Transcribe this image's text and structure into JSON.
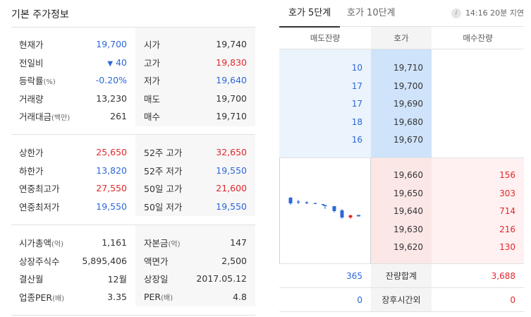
{
  "left": {
    "title": "기본 주가정보",
    "section1": {
      "col1": [
        {
          "label": "현재가",
          "value": "19,700",
          "color": "blue"
        },
        {
          "label": "전일비",
          "value": "40",
          "color": "blue",
          "arrow": "▼"
        },
        {
          "label": "등락률",
          "label_sub": "(%)",
          "value": "-0.20%",
          "color": "blue"
        },
        {
          "label": "거래량",
          "value": "13,230",
          "color": "dark"
        },
        {
          "label": "거래대금",
          "label_sub": "(백만)",
          "value": "261",
          "color": "dark"
        }
      ],
      "col2": [
        {
          "label": "시가",
          "value": "19,740",
          "color": "dark"
        },
        {
          "label": "고가",
          "value": "19,830",
          "color": "red"
        },
        {
          "label": "저가",
          "value": "19,640",
          "color": "blue"
        },
        {
          "label": "매도",
          "value": "19,700",
          "color": "dark"
        },
        {
          "label": "매수",
          "value": "19,710",
          "color": "dark"
        }
      ]
    },
    "section2": {
      "col1": [
        {
          "label": "상한가",
          "value": "25,650",
          "color": "red"
        },
        {
          "label": "하한가",
          "value": "13,820",
          "color": "blue"
        },
        {
          "label": "연중최고가",
          "value": "27,550",
          "color": "red"
        },
        {
          "label": "연중최저가",
          "value": "19,550",
          "color": "blue"
        }
      ],
      "col2": [
        {
          "label": "52주 고가",
          "value": "32,650",
          "color": "red"
        },
        {
          "label": "52주 저가",
          "value": "19,550",
          "color": "blue"
        },
        {
          "label": "50일 고가",
          "value": "21,600",
          "color": "red"
        },
        {
          "label": "50일 저가",
          "value": "19,550",
          "color": "blue"
        }
      ]
    },
    "section3": {
      "col1": [
        {
          "label": "시가총액",
          "label_sub": "(억)",
          "value": "1,161",
          "color": "dark"
        },
        {
          "label": "상장주식수",
          "value": "5,895,406",
          "color": "dark"
        },
        {
          "label": "결산월",
          "value": "12월",
          "color": "dark"
        },
        {
          "label": "업종PER",
          "label_sub": "(배)",
          "value": "3.35",
          "color": "dark"
        }
      ],
      "col2": [
        {
          "label": "자본금",
          "label_sub": "(억)",
          "value": "147",
          "color": "dark"
        },
        {
          "label": "액면가",
          "value": "2,500",
          "color": "dark"
        },
        {
          "label": "상장일",
          "value": "2017.05.12",
          "color": "dark"
        },
        {
          "label": "PER",
          "label_sub": "(배)",
          "value": "4.8",
          "color": "dark"
        }
      ]
    }
  },
  "right": {
    "tabs": [
      "호가 5단계",
      "호가 10단계"
    ],
    "info_icon_glyph": "i",
    "time": "14:16 20분 지연",
    "headers": {
      "ask_qty": "매도잔량",
      "price": "호가",
      "bid_qty": "매수잔량"
    },
    "asks": [
      {
        "qty": "10",
        "price": "19,710"
      },
      {
        "qty": "17",
        "price": "19,700"
      },
      {
        "qty": "17",
        "price": "19,690"
      },
      {
        "qty": "18",
        "price": "19,680"
      },
      {
        "qty": "16",
        "price": "19,670"
      }
    ],
    "bids": [
      {
        "price": "19,660",
        "qty": "156"
      },
      {
        "price": "19,650",
        "qty": "303"
      },
      {
        "price": "19,640",
        "qty": "714"
      },
      {
        "price": "19,630",
        "qty": "216"
      },
      {
        "price": "19,620",
        "qty": "130"
      }
    ],
    "total": {
      "ask": "365",
      "label": "잔량합계",
      "bid": "3,688"
    },
    "after_hours": {
      "ask": "0",
      "label": "장후시간외",
      "bid": "0"
    },
    "colors": {
      "up": "#e0272b",
      "down": "#2d67d8",
      "neutral": "#333333"
    }
  }
}
